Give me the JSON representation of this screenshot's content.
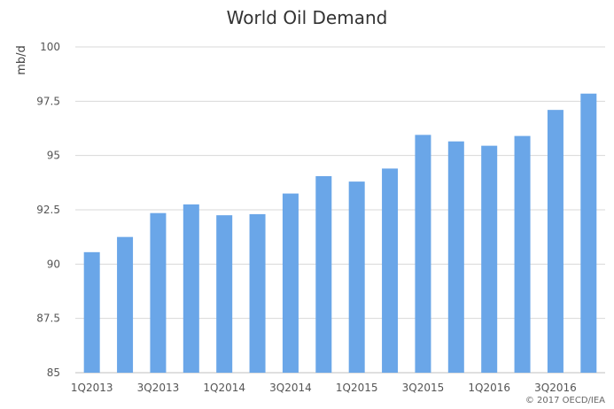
{
  "chart_data": {
    "type": "bar",
    "title": "World Oil Demand",
    "ylabel": "mb/d",
    "xlabel": "",
    "ylim": [
      85,
      100
    ],
    "yticks": [
      85,
      87.5,
      90,
      92.5,
      95,
      97.5,
      100
    ],
    "ytick_labels": [
      "85",
      "87.5",
      "90",
      "92.5",
      "95",
      "97.5",
      "100"
    ],
    "categories": [
      "1Q2013",
      "2Q2013",
      "3Q2013",
      "4Q2013",
      "1Q2014",
      "2Q2014",
      "3Q2014",
      "4Q2014",
      "1Q2015",
      "2Q2015",
      "3Q2015",
      "4Q2015",
      "1Q2016",
      "2Q2016",
      "3Q2016",
      "4Q2016"
    ],
    "x_tick_labels": [
      "1Q2013",
      "",
      "3Q2013",
      "",
      "1Q2014",
      "",
      "3Q2014",
      "",
      "1Q2015",
      "",
      "3Q2015",
      "",
      "1Q2016",
      "",
      "3Q2016",
      ""
    ],
    "values": [
      90.55,
      91.25,
      92.35,
      92.75,
      92.25,
      92.3,
      93.25,
      94.05,
      93.8,
      94.4,
      95.95,
      95.65,
      95.45,
      95.9,
      97.1,
      97.85
    ],
    "bar_color": "#6aa6e8",
    "grid": true,
    "gridline_color": "#d8d8d8"
  },
  "copyright": "© 2017 OECD/IEA"
}
